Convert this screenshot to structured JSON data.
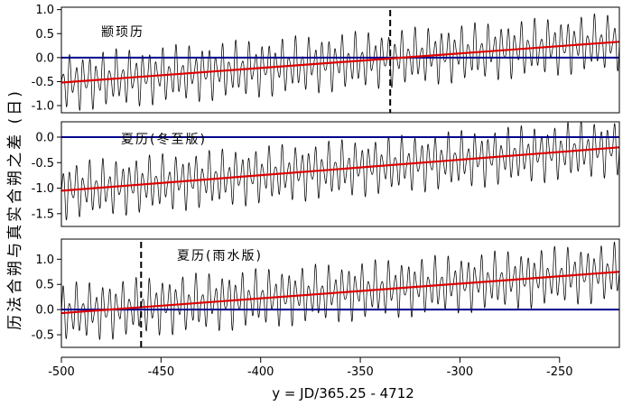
{
  "chart_data": {
    "type": "line",
    "ylabel": "历法合朔与真实合朔之差 (日)",
    "xlabel": "y = JD/365.25 - 4712",
    "x_range": [
      -500,
      -220
    ],
    "x_ticks": [
      -500,
      -450,
      -400,
      -350,
      -300,
      -250
    ],
    "x_tick_labels": [
      "-500",
      "-450",
      "-400",
      "-350",
      "-300",
      "-250"
    ],
    "colors": {
      "oscillation": "#000000",
      "trend": "#dd0000",
      "zero_line": "#00008b",
      "marker": "#000000"
    },
    "panels": [
      {
        "label": "颛顼历",
        "ylim": [
          -1.15,
          1.05
        ],
        "y_ticks": [
          -1.0,
          -0.5,
          0.0,
          0.5,
          1.0
        ],
        "y_tick_labels": [
          "-1.0",
          "-0.5",
          "0.0",
          "0.5",
          "1.0"
        ],
        "zero_line": 0.0,
        "trend_start": [
          -500,
          -0.52
        ],
        "trend_end": [
          -220,
          0.33
        ],
        "oscillation_amplitude": 0.62,
        "cycles_per_year": 0.3,
        "epoch_marker_x": -335
      },
      {
        "label": "夏历(冬至版)",
        "ylim": [
          -1.75,
          0.3
        ],
        "y_ticks": [
          -1.5,
          -1.0,
          -0.5,
          0.0
        ],
        "y_tick_labels": [
          "-1.5",
          "-1.0",
          "-0.5",
          "0.0"
        ],
        "zero_line": 0.0,
        "trend_start": [
          -500,
          -1.05
        ],
        "trend_end": [
          -220,
          -0.2
        ],
        "oscillation_amplitude": 0.58,
        "cycles_per_year": 0.3,
        "epoch_marker_x": null
      },
      {
        "label": "夏历(雨水版)",
        "ylim": [
          -0.75,
          1.4
        ],
        "y_ticks": [
          -0.5,
          0.0,
          0.5,
          1.0
        ],
        "y_tick_labels": [
          "-0.5",
          "0.0",
          "0.5",
          "1.0"
        ],
        "zero_line": 0.0,
        "trend_start": [
          -500,
          -0.07
        ],
        "trend_end": [
          -220,
          0.75
        ],
        "oscillation_amplitude": 0.6,
        "cycles_per_year": 0.3,
        "epoch_marker_x": -460
      }
    ]
  }
}
